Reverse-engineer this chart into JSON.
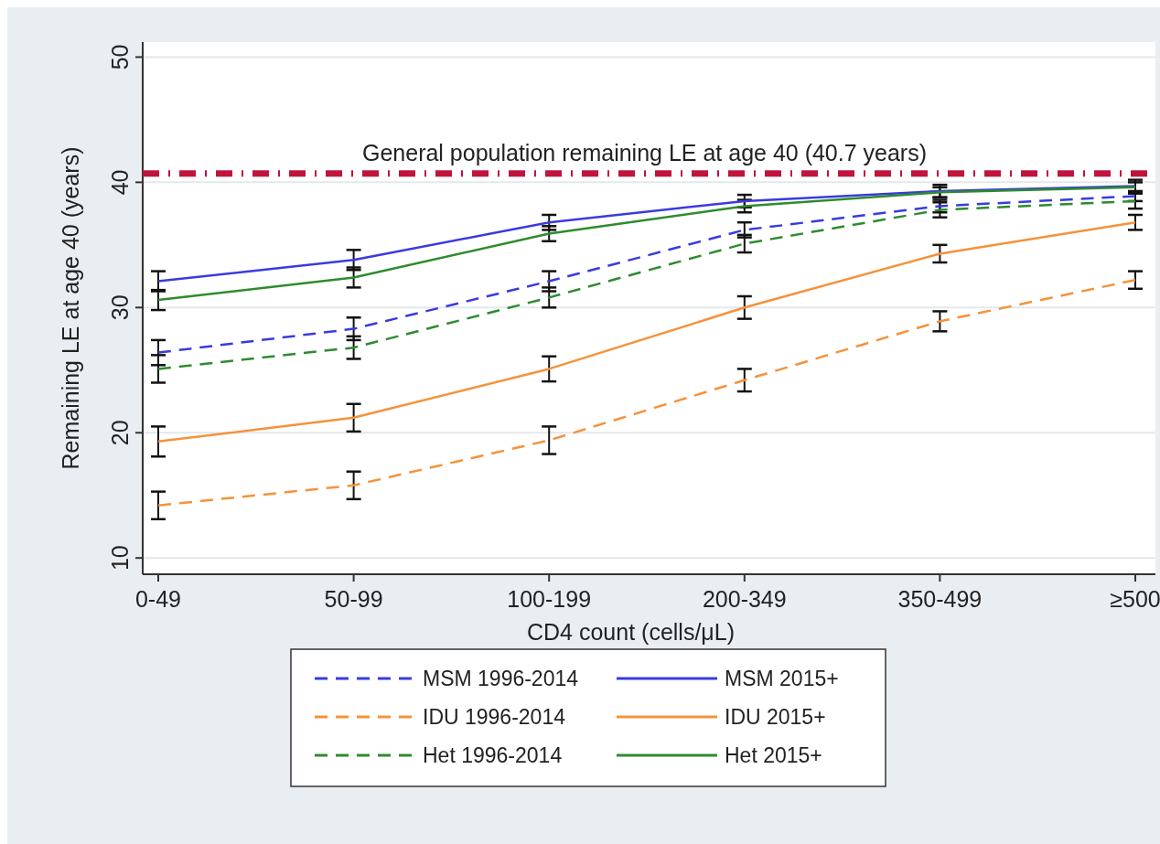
{
  "chart_data": {
    "type": "line",
    "xlabel": "CD4 count (cells/μL)",
    "ylabel": "Remaining LE at age 40 (years)",
    "categories": [
      "0-49",
      "50-99",
      "100-199",
      "200-349",
      "350-499",
      "≥500"
    ],
    "ylim": [
      8.7,
      51.2
    ],
    "yticks": [
      10,
      20,
      30,
      40,
      50
    ],
    "grid": "y",
    "legend": "bottom",
    "marker": "none",
    "ref_lines": [
      {
        "axis": "y",
        "value": 40.7,
        "label": "General population remaining LE at age 40 (40.7 years)",
        "color": "#c0143c",
        "line_style": "dashed"
      }
    ],
    "series": [
      {
        "name": "MSM 1996-2014",
        "color": "#3a3ae0",
        "line_style": "dashed",
        "values": [
          26.4,
          28.3,
          32.1,
          36.2,
          38.1,
          38.9
        ],
        "errors": [
          1.0,
          0.9,
          0.8,
          0.6,
          0.5,
          0.4
        ]
      },
      {
        "name": "MSM 2015+",
        "color": "#3a3ae0",
        "line_style": "solid",
        "values": [
          32.1,
          33.8,
          36.8,
          38.5,
          39.3,
          39.7
        ],
        "errors": [
          0.8,
          0.8,
          0.6,
          0.5,
          0.5,
          0.5
        ]
      },
      {
        "name": "IDU 1996-2014",
        "color": "#f5923a",
        "line_style": "dashed",
        "values": [
          14.2,
          15.8,
          19.4,
          24.2,
          28.9,
          32.2
        ],
        "errors": [
          1.1,
          1.1,
          1.1,
          0.9,
          0.8,
          0.7
        ]
      },
      {
        "name": "IDU 2015+",
        "color": "#f5923a",
        "line_style": "solid",
        "values": [
          19.3,
          21.2,
          25.1,
          30.0,
          34.3,
          36.8
        ],
        "errors": [
          1.2,
          1.1,
          1.0,
          0.9,
          0.7,
          0.6
        ]
      },
      {
        "name": "Het 1996-2014",
        "color": "#2e8b2e",
        "line_style": "dashed",
        "values": [
          25.1,
          26.8,
          30.8,
          35.1,
          37.8,
          38.5
        ],
        "errors": [
          1.1,
          0.9,
          0.8,
          0.7,
          0.6,
          0.6
        ]
      },
      {
        "name": "Het 2015+",
        "color": "#2e8b2e",
        "line_style": "solid",
        "values": [
          30.6,
          32.4,
          35.9,
          38.1,
          39.2,
          39.6
        ],
        "errors": [
          0.8,
          0.8,
          0.6,
          0.5,
          0.4,
          0.4
        ]
      }
    ]
  }
}
